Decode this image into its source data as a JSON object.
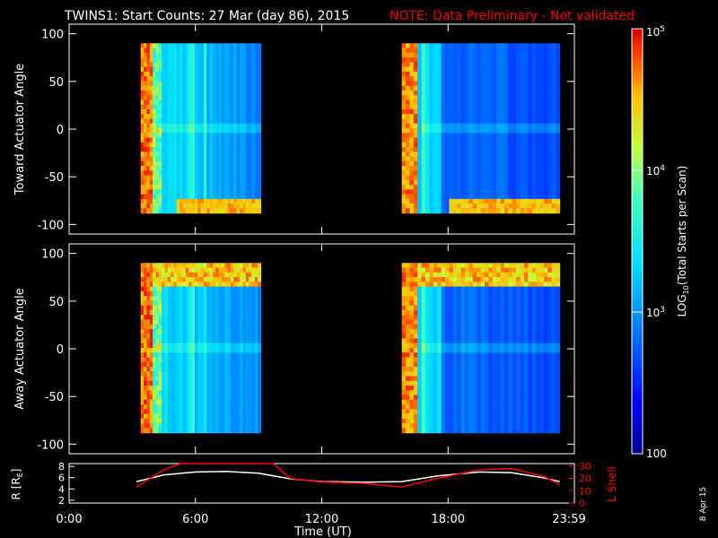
{
  "header": {
    "title": "TWINS1: Start Counts: 27 Mar (day  86), 2015",
    "note": "NOTE: Data Preliminary - Not validated",
    "note_color": "#ff0000"
  },
  "colorbar": {
    "label": "LOG10(Total Starts per Scan)",
    "label_main": "LOG",
    "label_sub": "10",
    "label_rest": "(Total Starts per Scan)",
    "ticks": [
      {
        "base": "10",
        "exp": "5"
      },
      {
        "base": "10",
        "exp": "4"
      },
      {
        "base": "10",
        "exp": "3"
      },
      {
        "base": "100",
        "exp": ""
      }
    ]
  },
  "footer": {
    "date_stamp": "8 Apr 15"
  },
  "chart_data": [
    {
      "type": "heatmap",
      "name": "toward",
      "ylabel": "Toward Actuator Angle",
      "ylim": [
        -110,
        110
      ],
      "yticks": [
        100,
        50,
        0,
        -50,
        -100
      ],
      "ytick_labels": [
        "100",
        "50",
        "0",
        "-50",
        "-100"
      ],
      "xlim_hours": [
        0,
        24
      ],
      "data_blocks_hours": [
        [
          3.4,
          9.1
        ],
        [
          15.8,
          23.3
        ]
      ],
      "data_angle_range": [
        -88,
        90
      ],
      "colorscale": "log",
      "zlim": [
        100,
        100000
      ]
    },
    {
      "type": "heatmap",
      "name": "away",
      "ylabel": "Away Actuator Angle",
      "ylim": [
        -110,
        110
      ],
      "yticks": [
        100,
        50,
        0,
        -50,
        -100
      ],
      "ytick_labels": [
        "100",
        "50",
        "0",
        "-50",
        "-100"
      ],
      "xlim_hours": [
        0,
        24
      ],
      "data_blocks_hours": [
        [
          3.4,
          9.1
        ],
        [
          15.8,
          23.3
        ]
      ],
      "data_angle_range": [
        -88,
        90
      ],
      "colorscale": "log",
      "zlim": [
        100,
        100000
      ]
    },
    {
      "type": "line",
      "name": "orbit",
      "ylabel_left": "R [RE]",
      "ylabel_left_main": "R [R",
      "ylabel_left_sub": "E",
      "ylabel_left_end": "]",
      "ylabel_right": "L Shell",
      "ylim_left": [
        1.5,
        8.5
      ],
      "yticks_left": [
        "8",
        "6",
        "4",
        "2"
      ],
      "ylim_right": [
        0,
        32
      ],
      "yticks_right": [
        "30",
        "20",
        "10",
        "0"
      ],
      "xlabel": "Time (UT)",
      "xticks": [
        "0:00",
        "6:00",
        "12:00",
        "18:00",
        "23:59"
      ],
      "series": [
        {
          "name": "R",
          "color": "#ffffff",
          "x": [
            3.2,
            4.5,
            6,
            7.5,
            9,
            10.5,
            12,
            14,
            15.8,
            17.5,
            19.5,
            21,
            22.5,
            23.3
          ],
          "y": [
            5.3,
            6.5,
            7.0,
            7.1,
            6.8,
            5.8,
            5.3,
            5.2,
            5.3,
            6.3,
            7.0,
            6.9,
            6.0,
            5.3
          ]
        },
        {
          "name": "L Shell",
          "color": "#ff0000",
          "x": [
            3.2,
            4.5,
            5.3,
            9.7,
            10.5,
            12,
            14,
            15.8,
            17.5,
            19.5,
            21,
            22.5,
            23.3
          ],
          "y": [
            13,
            27,
            33,
            33,
            20,
            17,
            16,
            13,
            20,
            27,
            28,
            22,
            15
          ]
        }
      ]
    }
  ]
}
